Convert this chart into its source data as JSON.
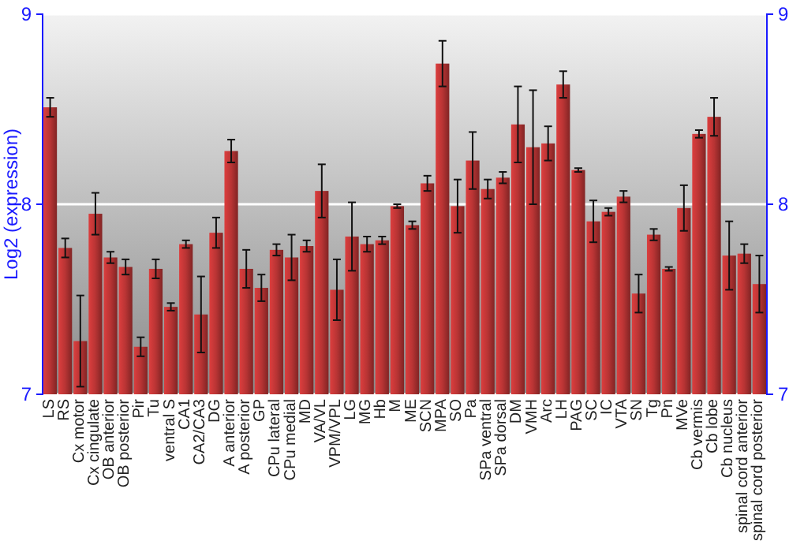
{
  "chart_data": {
    "type": "bar",
    "ylabel": "Log2 (expression)",
    "categories": [
      "LS",
      "RS",
      "Cx motor",
      "Cx cingulate",
      "OB anterior",
      "OB posterior",
      "Pir",
      "Tu",
      "ventral S",
      "CA1",
      "CA2/CA3",
      "DG",
      "A anterior",
      "A posterior",
      "GP",
      "CPu lateral",
      "CPu medial",
      "MD",
      "VA/VL",
      "VPM/VPL",
      "LG",
      "MG",
      "Hb",
      "M",
      "ME",
      "SCN",
      "MPA",
      "SO",
      "Pa",
      "SPa ventral",
      "SPa dorsal",
      "DM",
      "VMH",
      "Arc",
      "LH",
      "PAG",
      "SC",
      "IC",
      "VTA",
      "SN",
      "Tg",
      "Pn",
      "MVe",
      "Cb vermis",
      "Cb lobe",
      "Cb nucleus",
      "spinal cord anterior",
      "spinal cord posterior"
    ],
    "values": [
      8.51,
      7.77,
      7.28,
      7.95,
      7.72,
      7.67,
      7.25,
      7.66,
      7.46,
      7.79,
      7.42,
      7.85,
      8.28,
      7.66,
      7.56,
      7.76,
      7.72,
      7.78,
      8.07,
      7.55,
      7.83,
      7.79,
      7.81,
      7.99,
      7.89,
      8.11,
      8.74,
      7.99,
      8.23,
      8.08,
      8.14,
      8.42,
      8.3,
      8.32,
      8.63,
      8.18,
      7.91,
      7.96,
      8.04,
      7.53,
      7.84,
      7.66,
      7.98,
      8.37,
      8.46,
      7.73,
      7.74,
      7.58
    ],
    "errors": [
      0.05,
      0.05,
      0.24,
      0.11,
      0.03,
      0.04,
      0.05,
      0.05,
      0.02,
      0.02,
      0.2,
      0.08,
      0.06,
      0.1,
      0.07,
      0.03,
      0.12,
      0.03,
      0.14,
      0.16,
      0.18,
      0.04,
      0.02,
      0.01,
      0.02,
      0.04,
      0.12,
      0.14,
      0.15,
      0.05,
      0.03,
      0.2,
      0.3,
      0.09,
      0.07,
      0.01,
      0.11,
      0.02,
      0.03,
      0.1,
      0.03,
      0.01,
      0.12,
      0.02,
      0.1,
      0.18,
      0.05,
      0.15
    ],
    "color": "#b83434",
    "ylim": [
      7,
      9
    ],
    "yticks": [
      7,
      8,
      9
    ],
    "y2lim": [
      7,
      9
    ],
    "y2ticks": [
      7,
      8,
      9
    ],
    "grid": "y"
  }
}
